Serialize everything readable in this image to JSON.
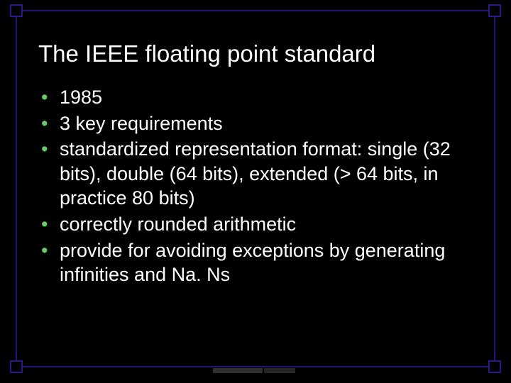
{
  "slide": {
    "title": "The IEEE floating point standard",
    "bullets": [
      "1985",
      "3 key requirements",
      "standardized representation format: single (32 bits), double (64 bits), extended (> 64 bits, in practice 80 bits)",
      "correctly rounded arithmetic",
      "provide for avoiding exceptions by generating infinities and Na. Ns"
    ],
    "style": {
      "background_color": "#000000",
      "text_color": "#ffffff",
      "bullet_color": "#66cc66",
      "frame_color": "#27117a",
      "title_fontsize_pt": 25,
      "body_fontsize_pt": 20,
      "font_family": "Verdana"
    }
  }
}
